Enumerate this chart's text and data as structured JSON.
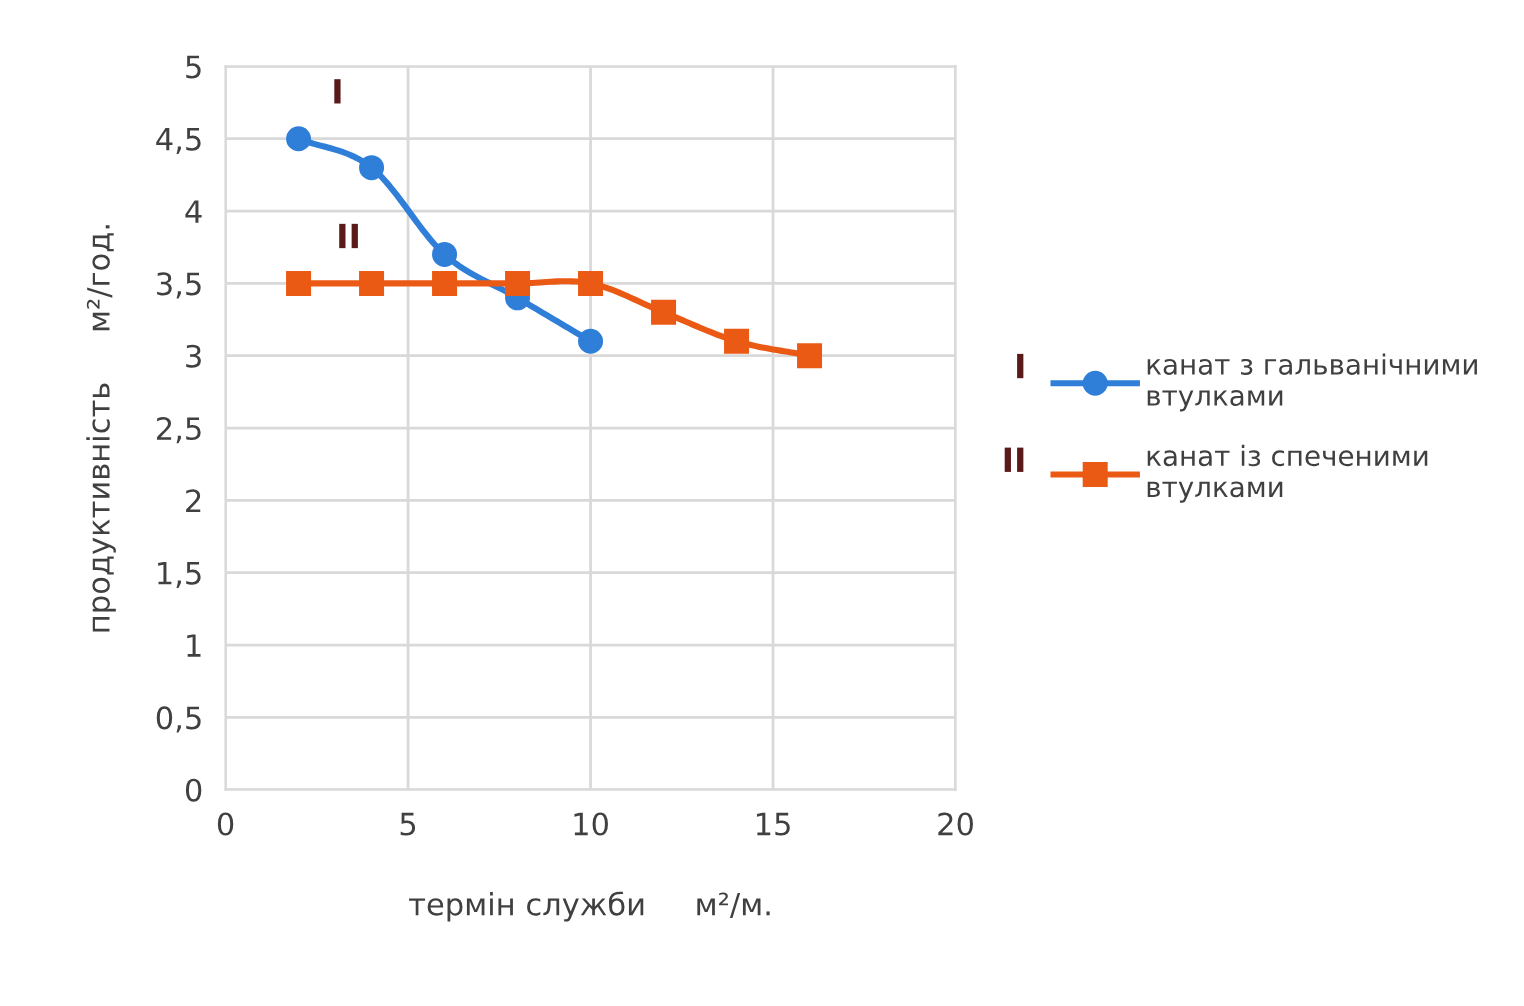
{
  "chart_data": {
    "type": "line",
    "xlabel": "термін служби     м²/м.",
    "ylabel": "продуктивність     м²/год.",
    "series": [
      {
        "name": "канат з гальванічними\nвтулками",
        "color": "#2f7ed8",
        "marker": "circle",
        "x": [
          2,
          4,
          6,
          8,
          10
        ],
        "values": [
          4.5,
          4.3,
          3.7,
          3.4,
          3.1
        ]
      },
      {
        "name": "канат із спеченими\nвтулками",
        "color": "#eb5a14",
        "marker": "square",
        "x": [
          2,
          4,
          6,
          8,
          10,
          12,
          14,
          16
        ],
        "values": [
          3.5,
          3.5,
          3.5,
          3.5,
          3.5,
          3.3,
          3.1,
          3.0
        ]
      }
    ],
    "xlim": [
      0,
      20
    ],
    "xticks": [
      0,
      5,
      10,
      15,
      20
    ],
    "ylim": [
      0,
      5
    ],
    "yticks": [
      0,
      {
        "value": 0.5,
        "label": "0,5"
      },
      1,
      {
        "value": 1.5,
        "label": "1,5"
      },
      2,
      {
        "value": 2.5,
        "label": "2,5"
      },
      3,
      {
        "value": 3.5,
        "label": "3,5"
      },
      4,
      {
        "value": 4.5,
        "label": "4,5"
      },
      5
    ],
    "grid": true,
    "legend": "right",
    "line_style": "solid",
    "annotations": [
      "I",
      "II",
      "I",
      "II"
    ]
  }
}
